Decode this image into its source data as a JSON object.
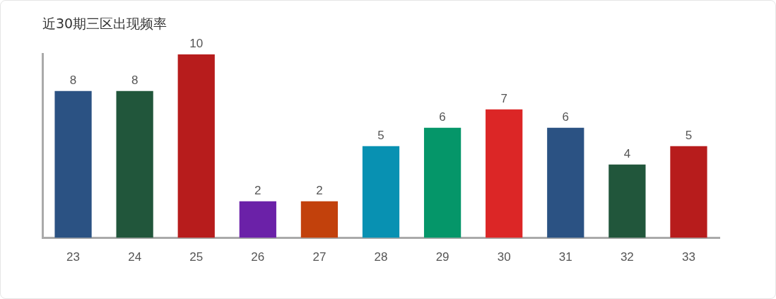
{
  "chart_data": {
    "type": "bar",
    "title": "近30期三区出现频率",
    "categories": [
      "23",
      "24",
      "25",
      "26",
      "27",
      "28",
      "29",
      "30",
      "31",
      "32",
      "33"
    ],
    "values": [
      8,
      8,
      10,
      2,
      2,
      5,
      6,
      7,
      6,
      4,
      5
    ],
    "colors": [
      "#2b5283",
      "#21563b",
      "#b71c1c",
      "#6b21a8",
      "#c2410c",
      "#0891b2",
      "#059669",
      "#dc2626",
      "#2b5283",
      "#21563b",
      "#b71c1c"
    ],
    "ylim": [
      0,
      10
    ],
    "grid": false,
    "legend": false,
    "tick_labels": "x",
    "data_labels": true
  }
}
